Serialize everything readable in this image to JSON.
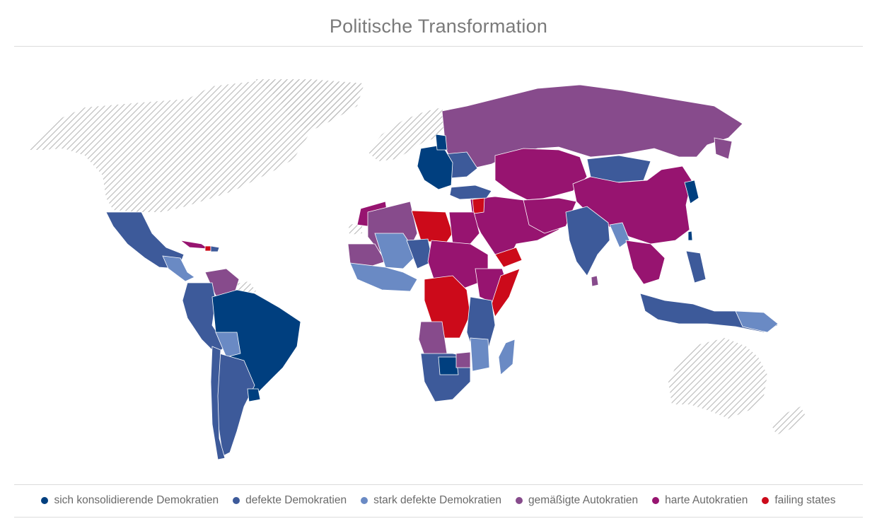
{
  "title": "Politische Transformation",
  "colors": {
    "consolidating": "#003f7f",
    "defective": "#3d5a9a",
    "highly_defective": "#6a8ac4",
    "moderate_autocracy": "#874b8c",
    "hard_autocracy": "#971470",
    "failing": "#cc0a1a",
    "no_data_hatch": "#b9b9b9"
  },
  "legend": [
    {
      "label": "sich konsolidierende Demokratien",
      "color": "#003f7f"
    },
    {
      "label": "defekte Demokratien",
      "color": "#3d5a9a"
    },
    {
      "label": "stark defekte Demokratien",
      "color": "#6a8ac4"
    },
    {
      "label": "gemäßigte Autokratien",
      "color": "#874b8c"
    },
    {
      "label": "harte Autokratien",
      "color": "#971470"
    },
    {
      "label": "failing states",
      "color": "#cc0a1a"
    }
  ]
}
